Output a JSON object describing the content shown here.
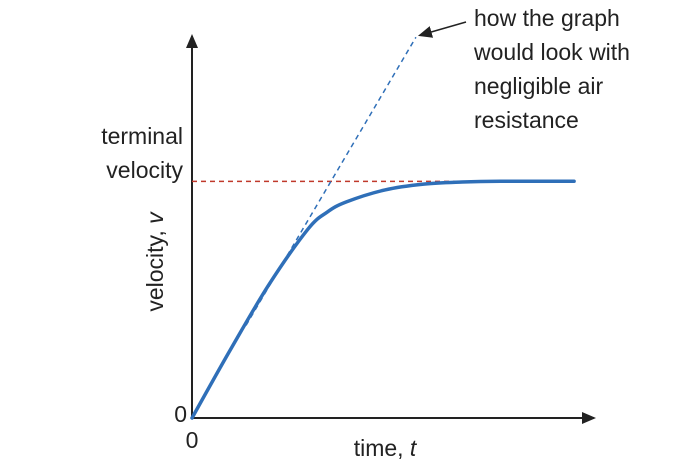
{
  "chart_data": {
    "type": "line",
    "xlabel": {
      "text": "time, ",
      "var": "t"
    },
    "ylabel": {
      "text": "velocity, ",
      "var": "v"
    },
    "x_origin_label": "0",
    "y_origin_label": "0",
    "terminal_velocity_label": [
      "terminal",
      "velocity"
    ],
    "annotation": [
      "how the graph",
      "would look with",
      "negligible air",
      "resistance"
    ],
    "xlim": [
      0,
      10
    ],
    "ylim": [
      0,
      10
    ],
    "terminal_velocity": 6.9,
    "series": [
      {
        "style": "solid",
        "x": [
          0,
          1.0,
          2.0,
          3.0,
          3.5,
          4.0,
          5.0,
          6.0,
          7.0,
          8.0,
          9.0,
          9.9
        ],
        "y": [
          0,
          2.0,
          3.9,
          5.5,
          6.0,
          6.3,
          6.65,
          6.82,
          6.88,
          6.9,
          6.9,
          6.9
        ]
      },
      {
        "style": "dashed",
        "x": [
          1.4,
          5.8
        ],
        "y": [
          2.7,
          11.1
        ]
      }
    ],
    "colors": {
      "curve": "#2f6fb8",
      "no_drag_line": "#2f6fb8",
      "terminal_line": "#c0392b",
      "axis": "#222222"
    }
  }
}
